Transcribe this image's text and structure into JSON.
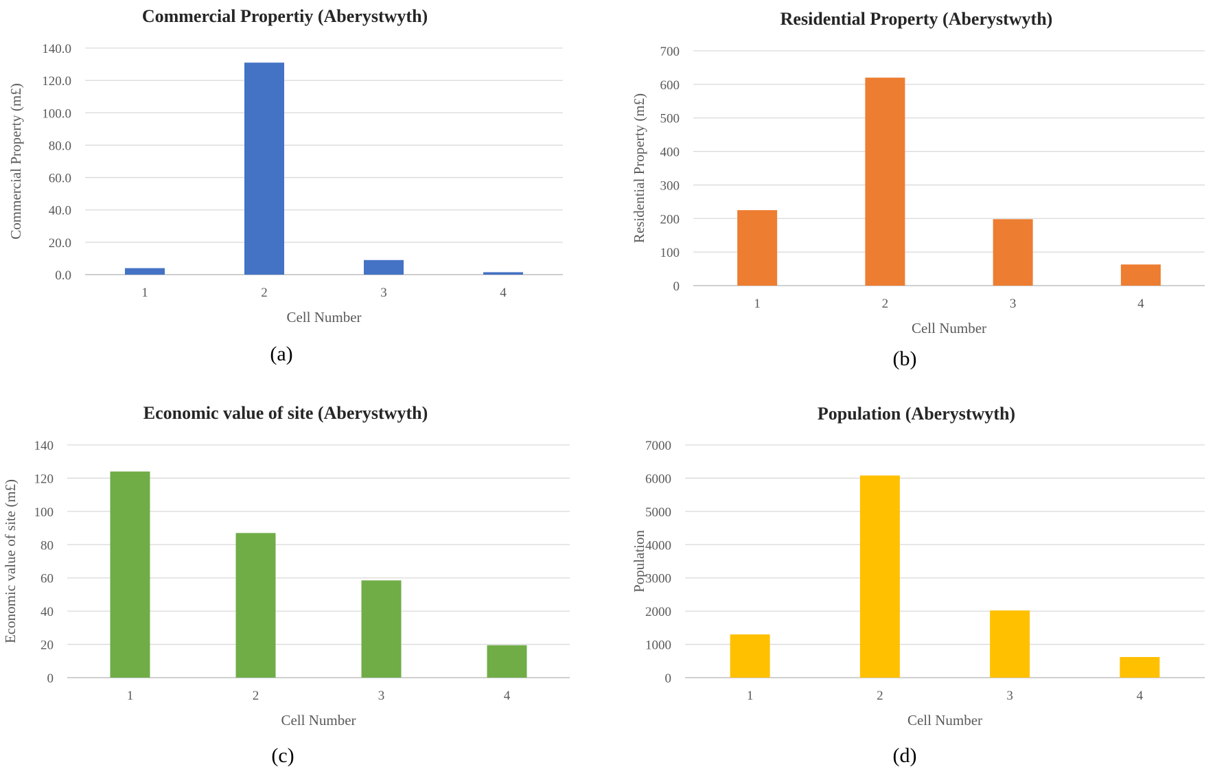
{
  "chart_data": [
    {
      "id": "a",
      "type": "bar",
      "title": "Commercial Propertiy (Aberystwyth)",
      "xlabel": "Cell Number",
      "ylabel": "Commercial Property  (m£)",
      "panel_label": "(a)",
      "categories": [
        "1",
        "2",
        "3",
        "4"
      ],
      "values": [
        4.0,
        131.0,
        9.0,
        1.5
      ],
      "ylim": [
        0,
        140
      ],
      "yticks": [
        "0.0",
        "20.0",
        "40.0",
        "60.0",
        "80.0",
        "100.0",
        "120.0",
        "140.0"
      ],
      "color": "#4472c4",
      "grid": true
    },
    {
      "id": "b",
      "type": "bar",
      "title": "Residential Property (Aberystwyth)",
      "xlabel": "Cell Number",
      "ylabel": "Residential Property (m£)",
      "panel_label": "(b)",
      "categories": [
        "1",
        "2",
        "3",
        "4"
      ],
      "values": [
        225,
        620,
        198,
        63
      ],
      "ylim": [
        0,
        700
      ],
      "yticks": [
        "0",
        "100",
        "200",
        "300",
        "400",
        "500",
        "600",
        "700"
      ],
      "color": "#ed7d31",
      "grid": true
    },
    {
      "id": "c",
      "type": "bar",
      "title": "Economic value of site (Aberystwyth)",
      "xlabel": "Cell Number",
      "ylabel": "Economic value of site (m£)",
      "panel_label": "(c)",
      "categories": [
        "1",
        "2",
        "3",
        "4"
      ],
      "values": [
        124,
        87,
        58.5,
        19.5
      ],
      "ylim": [
        0,
        140
      ],
      "yticks": [
        "0",
        "20",
        "40",
        "60",
        "80",
        "100",
        "120",
        "140"
      ],
      "color": "#70ad47",
      "grid": true
    },
    {
      "id": "d",
      "type": "bar",
      "title": "Population (Aberystwyth)",
      "xlabel": "Cell Number",
      "ylabel": "Population",
      "panel_label": "(d)",
      "categories": [
        "1",
        "2",
        "3",
        "4"
      ],
      "values": [
        1300,
        6080,
        2020,
        620
      ],
      "ylim": [
        0,
        7000
      ],
      "yticks": [
        "0",
        "1000",
        "2000",
        "3000",
        "4000",
        "5000",
        "6000",
        "7000"
      ],
      "color": "#ffc000",
      "grid": true
    }
  ]
}
